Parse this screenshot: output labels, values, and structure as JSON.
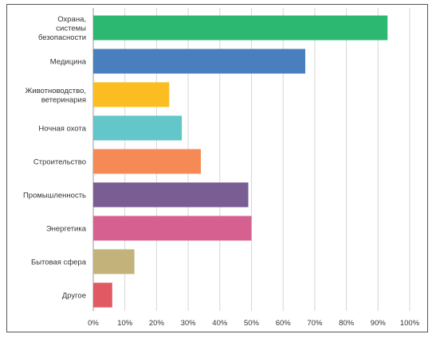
{
  "chart_data": {
    "type": "bar",
    "orientation": "horizontal",
    "categories": [
      [
        "Охрана,",
        "системы",
        "безопасности"
      ],
      [
        "Медицина"
      ],
      [
        "Животноводство,",
        "ветеринария"
      ],
      [
        "Ночная охота"
      ],
      [
        "Строительство"
      ],
      [
        "Промышленность"
      ],
      [
        "Энергетика"
      ],
      [
        "Бытовая сфера"
      ],
      [
        "Другое"
      ]
    ],
    "values": [
      93,
      67,
      24,
      28,
      34,
      49,
      50,
      13,
      6
    ],
    "colors": [
      "#2db872",
      "#4a7fbf",
      "#fbbd22",
      "#63c6c9",
      "#f68a56",
      "#7a5d93",
      "#d66190",
      "#c3b27a",
      "#e15a63"
    ],
    "x_ticks": [
      "0%",
      "10%",
      "20%",
      "30%",
      "40%",
      "50%",
      "60%",
      "70%",
      "80%",
      "90%",
      "100%"
    ],
    "xlim": [
      0,
      100
    ],
    "grid": "vertical",
    "title": "",
    "xlabel": "",
    "ylabel": ""
  }
}
